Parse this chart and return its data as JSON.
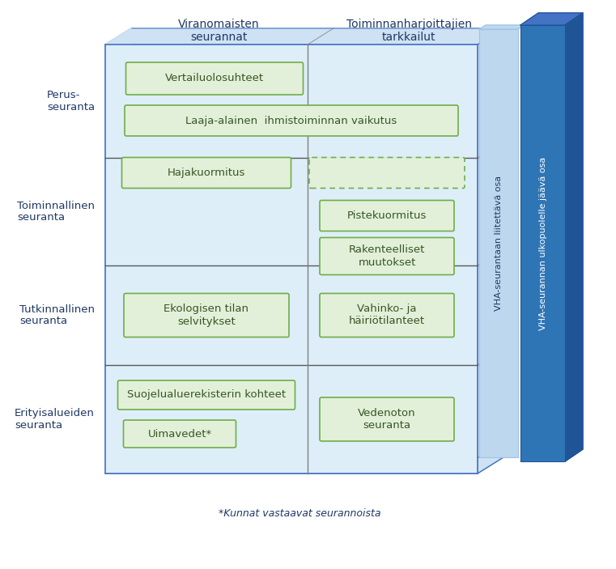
{
  "fig_width": 7.61,
  "fig_height": 7.03,
  "bg_color": "#ffffff",
  "col_header_viranomaisten": "Viranomaisten\nseurannat",
  "col_header_toiminnan": "Toiminnanharjoittajien\ntarkkailut",
  "row_labels": [
    "Perus-\nseuranta",
    "Toiminnallinen\nseuranta",
    "Tutkinnallinen\nseuranta",
    "Erityisalueiden\nseuranta"
  ],
  "footnote": "*Kunnat vastaavat seurannoista",
  "side_label1": "VHA-seurantaan liitettävä osa",
  "side_label2": "VHA-seurannan ulkopuolelle jäävä osa",
  "light_blue_main": "#cfe2f3",
  "lighter_blue_cell": "#ddeef9",
  "green_box_fill": "#e2f0d9",
  "green_box_edge": "#70ad47",
  "row_div_color": "#2e75b6",
  "col_div_color": "#7f7f7f",
  "side_panel1_color": "#bdd7ee",
  "side_panel1_edge": "#9dc3e6",
  "side_panel2_color": "#2e75b6",
  "side_panel2_dark": "#1f5496",
  "side_panel2_top": "#4472c4",
  "text_dark": "#1f3864",
  "green_text": "#375623",
  "row_line_color": "#595959",
  "main_edge_color": "#4472c4"
}
